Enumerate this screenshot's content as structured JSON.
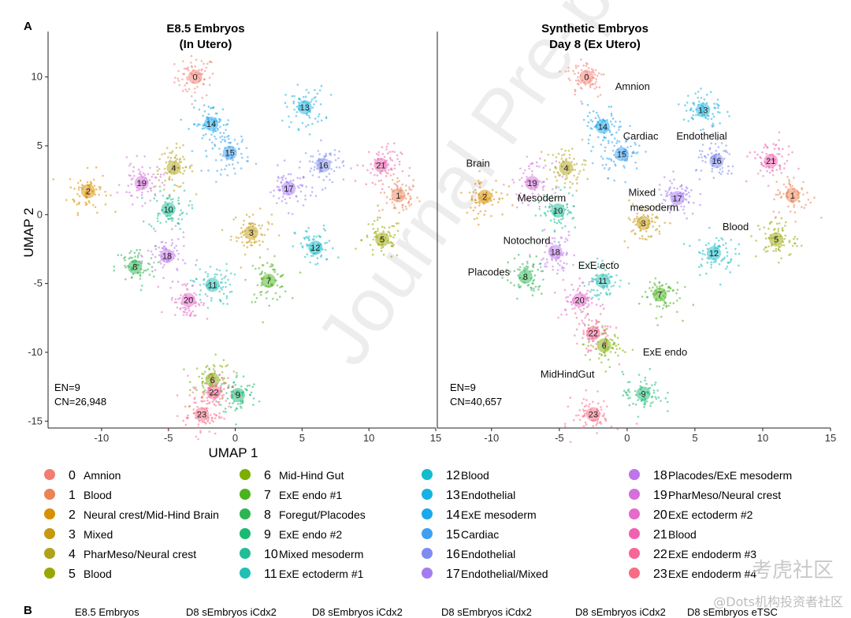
{
  "figure": {
    "panel_a_label": "A",
    "panel_b_label": "B",
    "x_axis_title": "UMAP 1",
    "y_axis_title": "UMAP 2",
    "panel_b_headers": [
      "E8.5 Embryos",
      "D8 sEmbryos iCdx2",
      "D8 sEmbryos iCdx2",
      "D8 sEmbryos iCdx2",
      "D8 sEmbryos iCdx2",
      "D8 sEmbryos eTSC"
    ]
  },
  "overlay": {
    "watermark": "Journal Pre-proof",
    "logo": "考虎社区",
    "credit": "@Dots机构投资者社区"
  },
  "chart_data": [
    {
      "type": "scatter",
      "title_lines": [
        "E8.5 Embryos",
        "(In Utero)"
      ],
      "xlabel": "UMAP 1",
      "ylabel": "UMAP 2",
      "xlim": [
        -14,
        15
      ],
      "ylim": [
        -15.5,
        12.5
      ],
      "xticks": [
        "-10",
        "-5",
        "0",
        "5",
        "10",
        "15"
      ],
      "yticks": [
        "10",
        "5",
        "0",
        "-5",
        "-10",
        "-15"
      ],
      "annotation": [
        "EN=9",
        "CN=26,948"
      ],
      "clusters": [
        {
          "id": "0",
          "x": -3.0,
          "y": 10.0
        },
        {
          "id": "1",
          "x": 12.2,
          "y": 1.4
        },
        {
          "id": "2",
          "x": -11.0,
          "y": 1.7
        },
        {
          "id": "3",
          "x": 1.2,
          "y": -1.3
        },
        {
          "id": "4",
          "x": -4.6,
          "y": 3.4
        },
        {
          "id": "5",
          "x": 11.0,
          "y": -1.8
        },
        {
          "id": "6",
          "x": -1.7,
          "y": -12.0
        },
        {
          "id": "7",
          "x": 2.5,
          "y": -4.8
        },
        {
          "id": "8",
          "x": -7.5,
          "y": -3.8
        },
        {
          "id": "9",
          "x": 0.2,
          "y": -13.1
        },
        {
          "id": "10",
          "x": -5.0,
          "y": 0.4
        },
        {
          "id": "11",
          "x": -1.7,
          "y": -5.1
        },
        {
          "id": "12",
          "x": 6.0,
          "y": -2.4
        },
        {
          "id": "13",
          "x": 5.2,
          "y": 7.8
        },
        {
          "id": "14",
          "x": -1.8,
          "y": 6.6
        },
        {
          "id": "15",
          "x": -0.4,
          "y": 4.5
        },
        {
          "id": "16",
          "x": 6.6,
          "y": 3.6
        },
        {
          "id": "17",
          "x": 4.0,
          "y": 1.9
        },
        {
          "id": "18",
          "x": -5.1,
          "y": -3.0
        },
        {
          "id": "19",
          "x": -7.0,
          "y": 2.3
        },
        {
          "id": "20",
          "x": -3.5,
          "y": -6.2
        },
        {
          "id": "21",
          "x": 10.9,
          "y": 3.6
        },
        {
          "id": "22",
          "x": -1.6,
          "y": -12.9
        },
        {
          "id": "23",
          "x": -2.5,
          "y": -14.5
        }
      ]
    },
    {
      "type": "scatter",
      "title_lines": [
        "Synthetic Embryos",
        "Day 8 (Ex Utero)"
      ],
      "xlabel": "UMAP 1",
      "ylabel": "UMAP 2",
      "xlim": [
        -14,
        15
      ],
      "ylim": [
        -15.5,
        12.5
      ],
      "xticks": [
        "-10",
        "-5",
        "0",
        "5",
        "10",
        "15"
      ],
      "yticks": [],
      "annotation": [
        "EN=9",
        "CN=40,657"
      ],
      "clusters": [
        {
          "id": "0",
          "x": -3.0,
          "y": 10.0
        },
        {
          "id": "1",
          "x": 12.2,
          "y": 1.4
        },
        {
          "id": "2",
          "x": -10.5,
          "y": 1.3
        },
        {
          "id": "3",
          "x": 1.2,
          "y": -0.6
        },
        {
          "id": "4",
          "x": -4.5,
          "y": 3.4
        },
        {
          "id": "5",
          "x": 11.0,
          "y": -1.8
        },
        {
          "id": "6",
          "x": -1.7,
          "y": -9.5
        },
        {
          "id": "7",
          "x": 2.4,
          "y": -5.8
        },
        {
          "id": "8",
          "x": -7.5,
          "y": -4.5
        },
        {
          "id": "9",
          "x": 1.2,
          "y": -13.0
        },
        {
          "id": "10",
          "x": -5.1,
          "y": 0.3
        },
        {
          "id": "11",
          "x": -1.8,
          "y": -4.8
        },
        {
          "id": "12",
          "x": 6.4,
          "y": -2.8
        },
        {
          "id": "13",
          "x": 5.6,
          "y": 7.6
        },
        {
          "id": "14",
          "x": -1.8,
          "y": 6.4
        },
        {
          "id": "15",
          "x": -0.4,
          "y": 4.4
        },
        {
          "id": "16",
          "x": 6.6,
          "y": 3.9
        },
        {
          "id": "17",
          "x": 3.7,
          "y": 1.2
        },
        {
          "id": "18",
          "x": -5.3,
          "y": -2.7
        },
        {
          "id": "19",
          "x": -7.0,
          "y": 2.3
        },
        {
          "id": "20",
          "x": -3.5,
          "y": -6.2
        },
        {
          "id": "21",
          "x": 10.6,
          "y": 3.9
        },
        {
          "id": "22",
          "x": -2.5,
          "y": -8.6
        },
        {
          "id": "23",
          "x": -2.5,
          "y": -14.5
        }
      ],
      "text_labels": [
        {
          "text": "Amnion",
          "x": 0.4,
          "y": 9.3
        },
        {
          "text": "Cardiac",
          "x": 1.0,
          "y": 5.7
        },
        {
          "text": "Endothelial",
          "x": 5.5,
          "y": 5.7
        },
        {
          "text": "Brain",
          "x": -11.0,
          "y": 3.7
        },
        {
          "text": "Mesoderm",
          "x": -6.3,
          "y": 1.2
        },
        {
          "text": "Mixed",
          "x": 1.1,
          "y": 1.6
        },
        {
          "text": "mesoderm",
          "x": 2.0,
          "y": 0.5
        },
        {
          "text": "Blood",
          "x": 8.0,
          "y": -0.9
        },
        {
          "text": "Notochord",
          "x": -7.4,
          "y": -1.9
        },
        {
          "text": "Placodes",
          "x": -10.2,
          "y": -4.2
        },
        {
          "text": "ExE ecto",
          "x": -2.1,
          "y": -3.7
        },
        {
          "text": "ExE endo",
          "x": 2.8,
          "y": -10.0
        },
        {
          "text": "MidHindGut",
          "x": -4.4,
          "y": -11.6
        }
      ]
    }
  ],
  "legend": [
    {
      "id": "0",
      "label": "Amnion",
      "color": "#f27d72"
    },
    {
      "id": "1",
      "label": "Blood",
      "color": "#ea8356"
    },
    {
      "id": "2",
      "label": "Neural crest/Mid-Hind Brain",
      "color": "#d89000"
    },
    {
      "id": "3",
      "label": "Mixed",
      "color": "#c59a10"
    },
    {
      "id": "4",
      "label": "PharMeso/Neural crest",
      "color": "#b0a21b"
    },
    {
      "id": "5",
      "label": "Blood",
      "color": "#99a800"
    },
    {
      "id": "6",
      "label": "Mid-Hind Gut",
      "color": "#7bae00"
    },
    {
      "id": "7",
      "label": "ExE endo #1",
      "color": "#4cb31f"
    },
    {
      "id": "8",
      "label": "Foregut/Placodes",
      "color": "#2cb552"
    },
    {
      "id": "9",
      "label": "ExE endo #2",
      "color": "#19ba72"
    },
    {
      "id": "10",
      "label": "Mixed mesoderm",
      "color": "#1fbe97"
    },
    {
      "id": "11",
      "label": "ExE ectoderm #1",
      "color": "#1fbfb4"
    },
    {
      "id": "12",
      "label": "Blood",
      "color": "#13bccc"
    },
    {
      "id": "13",
      "label": "Endothelial",
      "color": "#17b3e0"
    },
    {
      "id": "14",
      "label": "ExE mesoderm",
      "color": "#1aa8ec"
    },
    {
      "id": "15",
      "label": "Cardiac",
      "color": "#3ea0f1"
    },
    {
      "id": "16",
      "label": "Endothelial",
      "color": "#7e8cf2"
    },
    {
      "id": "17",
      "label": "Endothelial/Mixed",
      "color": "#a47cf0"
    },
    {
      "id": "18",
      "label": "Placodes/ExE mesoderm",
      "color": "#bd75e8"
    },
    {
      "id": "19",
      "label": "PharMeso/Neural crest",
      "color": "#d56fdc"
    },
    {
      "id": "20",
      "label": "ExE ectoderm #2",
      "color": "#e66ac9"
    },
    {
      "id": "21",
      "label": "Blood",
      "color": "#f062b0"
    },
    {
      "id": "22",
      "label": "ExE endoderm #3",
      "color": "#f66697"
    },
    {
      "id": "23",
      "label": "ExE endoderm #4",
      "color": "#f76c84"
    }
  ]
}
